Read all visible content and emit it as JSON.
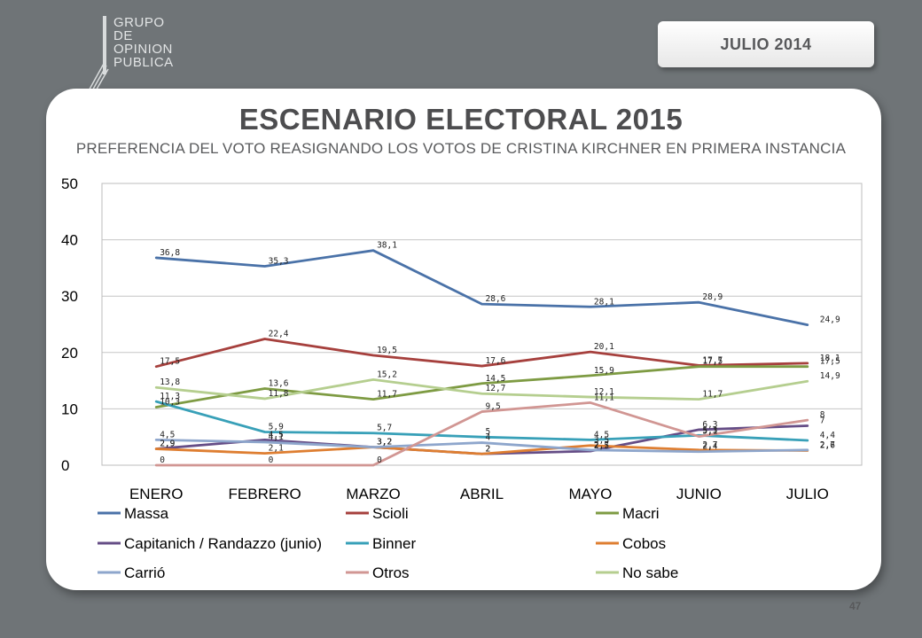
{
  "logo": {
    "lines": [
      "GRUPO",
      "DE",
      "OPINION",
      "PUBLICA"
    ]
  },
  "badge": {
    "date": "JULIO  2014"
  },
  "header": {
    "title": "ESCENARIO ELECTORAL 2015",
    "subtitle": "PREFERENCIA DEL VOTO REASIGNANDO LOS VOTOS DE CRISTINA KIRCHNER EN PRIMERA INSTANCIA"
  },
  "footer": {
    "page_number": "47"
  },
  "colors": {
    "background": "#6f7477",
    "Massa": "#4a72a8",
    "Scioli": "#a6403d",
    "Macri": "#7e9b43",
    "Capitanich": "#654d86",
    "Binner": "#38a0b8",
    "Cobos": "#de7e31",
    "Carrio": "#8ea6cc",
    "Otros": "#d19693",
    "NoSabe": "#b5ce8f"
  },
  "chart_data": {
    "type": "line",
    "categories": [
      "ENERO",
      "FEBRERO",
      "MARZO",
      "ABRIL",
      "MAYO",
      "JUNIO",
      "JULIO"
    ],
    "ylim": [
      0,
      50
    ],
    "yticks": [
      "0",
      "10",
      "20",
      "30",
      "40",
      "50"
    ],
    "grid": true,
    "legend_position": "bottom",
    "series": [
      {
        "name": "Massa",
        "color": "#4a72a8",
        "values": [
          36.8,
          35.3,
          38.1,
          28.6,
          28.1,
          28.9,
          24.9
        ],
        "labels": [
          "36,8",
          "35,3",
          "38,1",
          "28,6",
          "28,1",
          "28,9",
          "24,9"
        ]
      },
      {
        "name": "Scioli",
        "color": "#a6403d",
        "values": [
          17.5,
          22.4,
          19.5,
          17.6,
          20.1,
          17.7,
          18.1
        ],
        "labels": [
          "17,5",
          "22,4",
          "19,5",
          "17,6",
          "20,1",
          "17,7",
          "18,1"
        ]
      },
      {
        "name": "Macri",
        "color": "#7e9b43",
        "values": [
          10.3,
          13.6,
          11.7,
          14.5,
          15.9,
          17.5,
          17.5
        ],
        "labels": [
          "10,3",
          "13,6",
          "11,7",
          "14,5",
          "15,9",
          "17,5",
          "17,5"
        ]
      },
      {
        "name": "Capitanich / Randazzo (junio)",
        "color": "#654d86",
        "values": [
          2.9,
          4.5,
          3.2,
          2,
          2.5,
          6.3,
          7
        ],
        "labels": [
          "2,9",
          "4,5",
          "3,2",
          "2",
          "2,5",
          "6,3",
          "7"
        ]
      },
      {
        "name": "Binner",
        "color": "#38a0b8",
        "values": [
          11.3,
          5.9,
          5.7,
          5,
          4.5,
          5.3,
          4.4
        ],
        "labels": [
          "11,3",
          "5,9",
          "5,7",
          "5",
          "4,5",
          "5,3",
          "4,4"
        ]
      },
      {
        "name": "Cobos",
        "color": "#de7e31",
        "values": [
          2.9,
          2.1,
          3.2,
          2,
          3.5,
          2.7,
          2.6
        ],
        "labels": [
          "2,9",
          "2,1",
          "3,2",
          "2",
          "3,5",
          "2,7",
          "2,6"
        ]
      },
      {
        "name": "Carrió",
        "color": "#8ea6cc",
        "values": [
          4.5,
          4.1,
          3.2,
          4,
          2.7,
          2.4,
          2.7
        ],
        "labels": [
          "4,5",
          "4,1",
          "3,2",
          "4",
          "2,7",
          "2,4",
          "2,7"
        ]
      },
      {
        "name": "Otros",
        "color": "#d19693",
        "values": [
          0,
          0,
          0,
          9.5,
          11.1,
          5.1,
          8
        ],
        "labels": [
          "0",
          "0",
          "0",
          "9,5",
          "11,1",
          "5,1",
          "8"
        ]
      },
      {
        "name": "No sabe",
        "color": "#b5ce8f",
        "values": [
          13.8,
          11.8,
          15.2,
          12.7,
          12.1,
          11.7,
          14.9
        ],
        "labels": [
          "13,8",
          "11,8",
          "15,2",
          "12,7",
          "12,1",
          "11,7",
          "14,9"
        ]
      }
    ]
  }
}
